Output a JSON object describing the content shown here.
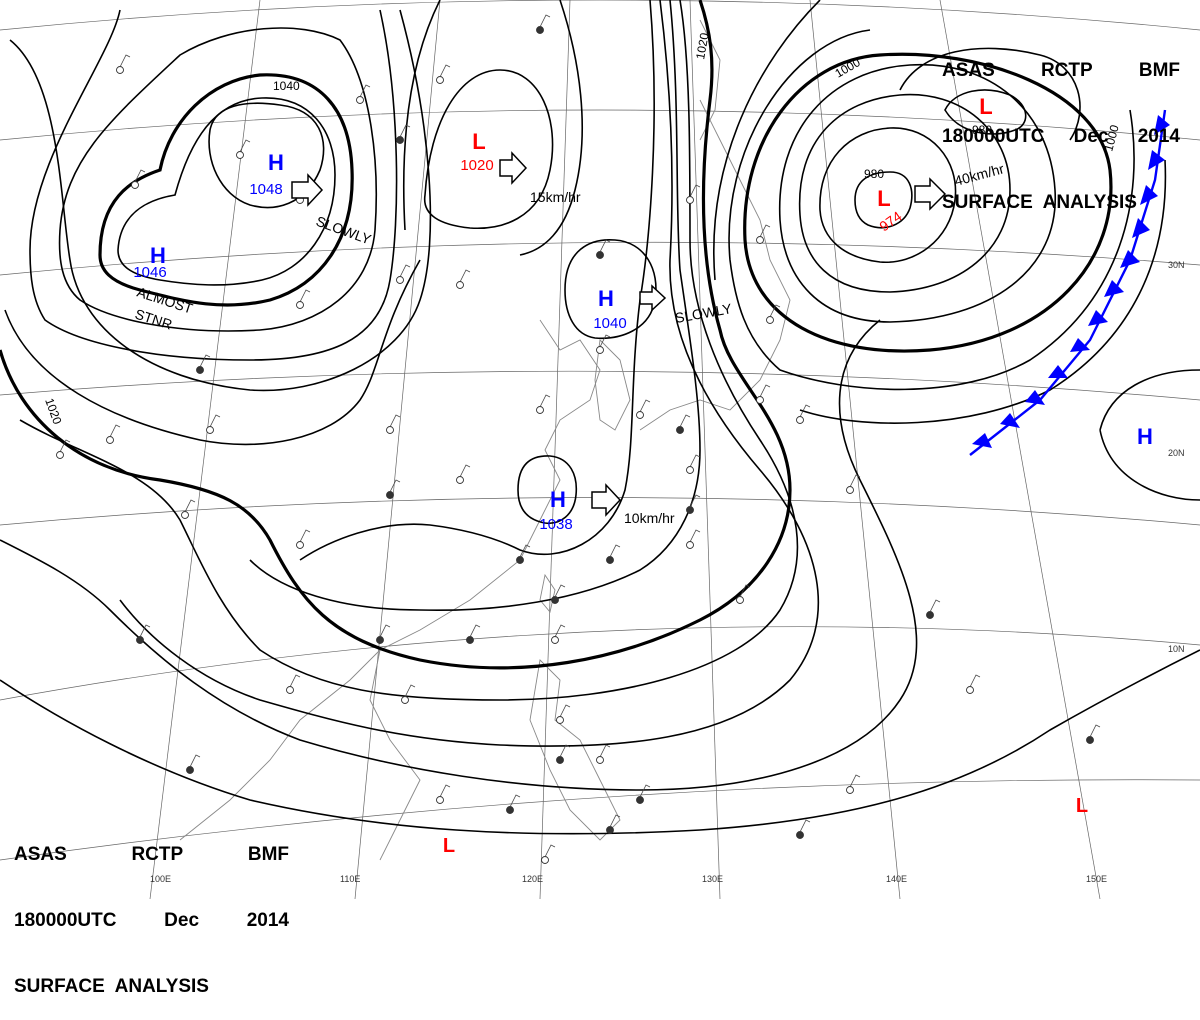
{
  "header": {
    "line1": [
      "ASAS",
      "RCTP",
      "BMF"
    ],
    "line2": [
      "180000UTC",
      "Dec",
      "2014"
    ],
    "line3": "SURFACE  ANALYSIS"
  },
  "centers": [
    {
      "type": "H",
      "pressure": "1048"
    },
    {
      "type": "H",
      "pressure": "1046"
    },
    {
      "type": "H",
      "pressure": "1040"
    },
    {
      "type": "H",
      "pressure": "1038"
    },
    {
      "type": "H",
      "pressure": ""
    },
    {
      "type": "L",
      "pressure": "1020"
    },
    {
      "type": "L",
      "pressure": "974"
    },
    {
      "type": "L",
      "pressure": ""
    },
    {
      "type": "L",
      "pressure": ""
    },
    {
      "type": "L",
      "pressure": ""
    }
  ],
  "movement_labels": [
    "SLOWLY",
    "15km/hr",
    "SLOWLY",
    "40km/hr",
    "10km/hr",
    "ALMOST",
    "STNR"
  ],
  "isobar_labels": [
    "1040",
    "1020",
    "1020",
    "1000",
    "1000",
    "980",
    "980"
  ],
  "longitude_labels": [
    "100E",
    "110E",
    "120E",
    "130E",
    "140E",
    "150E"
  ],
  "latitude_labels": [
    "30N",
    "20N",
    "10N"
  ],
  "colors": {
    "high": "#0000ff",
    "low": "#ff0000",
    "isobar": "#000000",
    "front": "#0000ff",
    "grid": "#666666"
  }
}
